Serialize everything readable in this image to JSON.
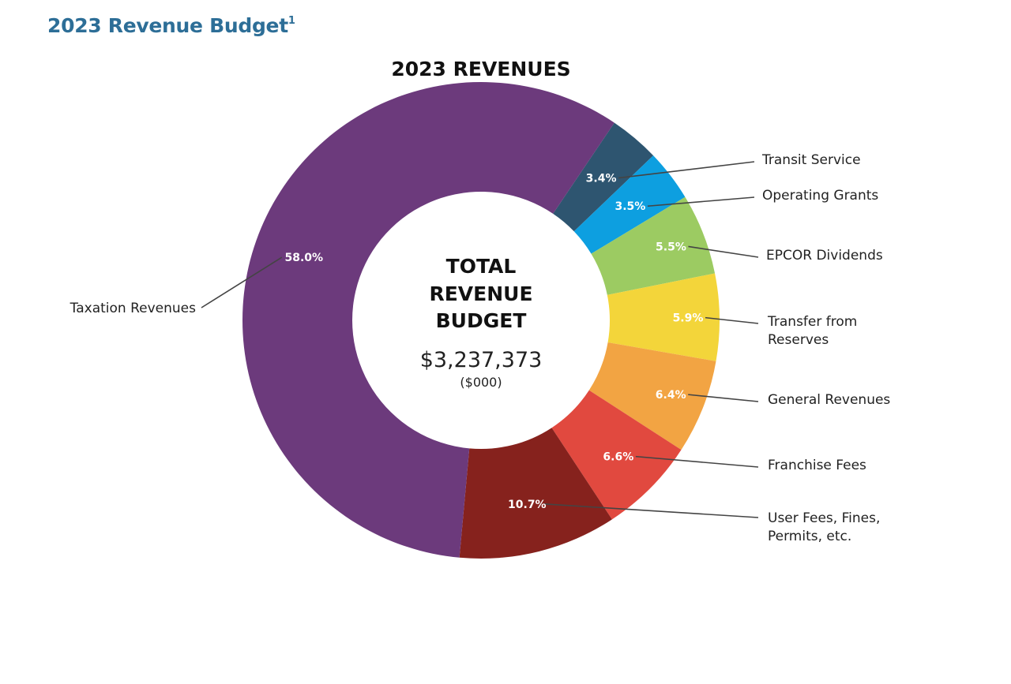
{
  "heading": {
    "title": "2023 Revenue Budget",
    "footnote_marker": "1"
  },
  "chart_data": {
    "type": "pie",
    "variant": "donut",
    "title": "2023 REVENUES",
    "center": {
      "title_lines": [
        "TOTAL",
        "REVENUE",
        "BUDGET"
      ],
      "amount": "$3,237,373",
      "unit": "($000)"
    },
    "slices": [
      {
        "name": "Transit Service",
        "label_lines": [
          "Transit Service"
        ],
        "value": 3.4,
        "value_label": "3.4%",
        "color": "#2e5570"
      },
      {
        "name": "Operating Grants",
        "label_lines": [
          "Operating Grants"
        ],
        "value": 3.5,
        "value_label": "3.5%",
        "color": "#0d9fe0"
      },
      {
        "name": "EPCOR Dividends",
        "label_lines": [
          "EPCOR Dividends"
        ],
        "value": 5.5,
        "value_label": "5.5%",
        "color": "#9ccb62"
      },
      {
        "name": "Transfer from Reserves",
        "label_lines": [
          "Transfer from",
          "Reserves"
        ],
        "value": 5.9,
        "value_label": "5.9%",
        "color": "#f3d53a"
      },
      {
        "name": "General Revenues",
        "label_lines": [
          "General Revenues"
        ],
        "value": 6.4,
        "value_label": "6.4%",
        "color": "#f2a443"
      },
      {
        "name": "Franchise Fees",
        "label_lines": [
          "Franchise Fees"
        ],
        "value": 6.6,
        "value_label": "6.6%",
        "color": "#e1493f"
      },
      {
        "name": "User Fees, Fines, Permits, etc.",
        "label_lines": [
          "User Fees, Fines,",
          "Permits, etc."
        ],
        "value": 10.7,
        "value_label": "10.7%",
        "color": "#86221d"
      },
      {
        "name": "Taxation Revenues",
        "label_lines": [
          "Taxation Revenues"
        ],
        "value": 58.0,
        "value_label": "58.0%",
        "color": "#6c3a7c"
      }
    ],
    "legend": "leader-line labels"
  }
}
